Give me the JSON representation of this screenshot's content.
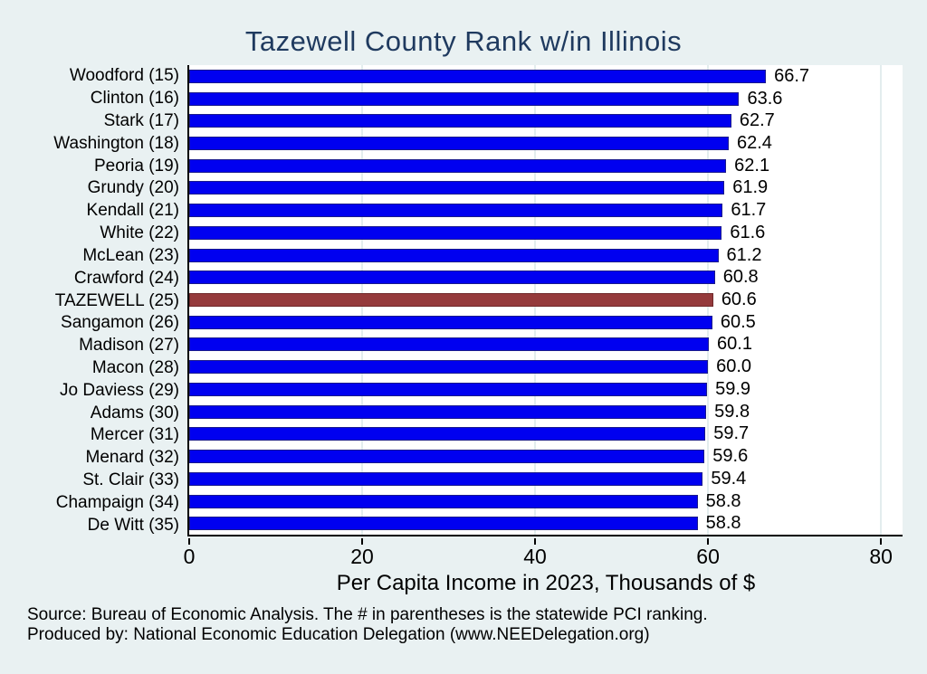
{
  "title": "Tazewell County Rank w/in Illinois",
  "chart_data": {
    "type": "bar",
    "orientation": "horizontal",
    "title": "Tazewell County Rank w/in Illinois",
    "categories": [
      "Woodford (15)",
      "Clinton (16)",
      "Stark (17)",
      "Washington (18)",
      "Peoria (19)",
      "Grundy (20)",
      "Kendall (21)",
      "White (22)",
      "McLean (23)",
      "Crawford (24)",
      "TAZEWELL (25)",
      "Sangamon (26)",
      "Madison (27)",
      "Macon (28)",
      "Jo Daviess (29)",
      "Adams (30)",
      "Mercer (31)",
      "Menard (32)",
      "St. Clair (33)",
      "Champaign (34)",
      "De Witt (35)"
    ],
    "values": [
      66.7,
      63.6,
      62.7,
      62.4,
      62.1,
      61.9,
      61.7,
      61.6,
      61.2,
      60.8,
      60.6,
      60.5,
      60.1,
      60.0,
      59.9,
      59.8,
      59.7,
      59.6,
      59.4,
      58.8,
      58.8
    ],
    "value_labels": [
      "66.7",
      "63.6",
      "62.7",
      "62.4",
      "62.1",
      "61.9",
      "61.7",
      "61.6",
      "61.2",
      "60.8",
      "60.6",
      "60.5",
      "60.1",
      "60.0",
      "59.9",
      "59.8",
      "59.7",
      "59.6",
      "59.4",
      "58.8",
      "58.8"
    ],
    "highlight_index": 10,
    "highlight_category": "TAZEWELL (25)",
    "xlabel": "Per Capita Income in 2023, Thousands of $",
    "ylabel": "",
    "xticks": [
      0,
      20,
      40,
      60,
      80
    ],
    "xtick_labels": [
      "0",
      "20",
      "40",
      "60",
      "80"
    ],
    "xlim": [
      0,
      82.5
    ],
    "grid": "vertical gridlines at x ticks, plot background white",
    "legend": "none",
    "bar_color": "#0000f0",
    "bar_border_color": "#1a1a8c",
    "highlight_color": "#953a3c",
    "highlight_border_color": "#70292b"
  },
  "footer": {
    "line1": "Source: Bureau of Economic Analysis. The # in parentheses is the statewide PCI ranking.",
    "line2": "Produced by: National Economic Education Delegation (www.NEEDelegation.org)"
  },
  "colors": {
    "page_background": "#e9f1f2",
    "title_text": "#1f3a5f",
    "plot_background": "#ffffff",
    "gridline": "#e3edee",
    "axis": "#000000"
  }
}
